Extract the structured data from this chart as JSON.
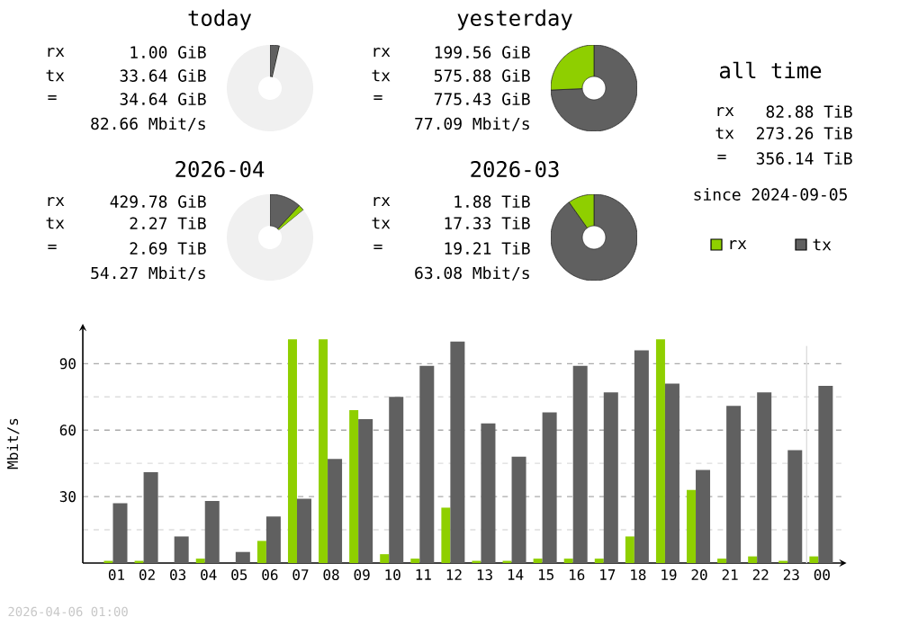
{
  "chart_data": [
    {
      "type": "donut",
      "title": "today",
      "categories": [
        null,
        null,
        null
      ],
      "values": [
        3.5,
        0.1,
        96.4
      ],
      "colors": [
        "#606060",
        "#8fcf00",
        "#f0f0f0"
      ],
      "annotations": [
        "rx",
        "1.00 GiB",
        "tx",
        "33.64 GiB",
        "=",
        "34.64 GiB",
        "82.66 Mbit/s"
      ]
    },
    {
      "type": "donut",
      "title": "yesterday",
      "categories": [
        null,
        null,
        null
      ],
      "values": [
        74.3,
        25.7,
        0
      ],
      "colors": [
        "#606060",
        "#8fcf00",
        "#f0f0f0"
      ],
      "annotations": [
        "rx",
        "199.56 GiB",
        "tx",
        "575.88 GiB",
        "=",
        "775.43 GiB",
        "77.09 Mbit/s"
      ]
    },
    {
      "type": "other",
      "title": "all time",
      "annotations": [
        "rx",
        "82.88 TiB",
        "tx",
        "273.26 TiB",
        "=",
        "356.14 TiB",
        "since 2024-09-05"
      ]
    },
    {
      "type": "donut",
      "title": "2026-04",
      "categories": [
        null,
        null,
        null
      ],
      "values": [
        11.8,
        2.2,
        86
      ],
      "colors": [
        "#606060",
        "#8fcf00",
        "#f0f0f0"
      ],
      "annotations": [
        "rx",
        "429.78 GiB",
        "tx",
        "2.27 TiB",
        "=",
        "2.69 TiB",
        "54.27 Mbit/s"
      ]
    },
    {
      "type": "donut",
      "title": "2026-03",
      "categories": [
        null,
        null,
        null
      ],
      "values": [
        90.2,
        9.8,
        0
      ],
      "colors": [
        "#606060",
        "#8fcf00",
        "#f0f0f0"
      ],
      "annotations": [
        "rx",
        "1.88 TiB",
        "tx",
        "17.33 TiB",
        "=",
        "19.21 TiB",
        "63.08 Mbit/s"
      ]
    },
    {
      "type": "bar",
      "ylabel": "Mbit/s",
      "categories": [
        "01",
        "02",
        "03",
        "04",
        "05",
        "06",
        "07",
        "08",
        "09",
        "10",
        "11",
        "12",
        "13",
        "14",
        "15",
        "16",
        "17",
        "18",
        "19",
        "20",
        "21",
        "22",
        "23",
        "00"
      ],
      "series": [
        {
          "name": "rx",
          "color": "#8fcf00",
          "values": [
            1,
            1,
            0,
            2,
            0,
            10,
            101,
            101,
            69,
            4,
            2,
            25,
            1,
            1,
            2,
            2,
            2,
            12,
            101,
            33,
            2,
            3,
            1,
            3
          ]
        },
        {
          "name": "tx",
          "color": "#606060",
          "values": [
            27,
            41,
            12,
            28,
            5,
            21,
            29,
            47,
            65,
            75,
            89,
            100,
            63,
            48,
            68,
            89,
            77,
            96,
            81,
            42,
            71,
            77,
            51,
            80
          ]
        }
      ],
      "ylim": [
        0,
        108
      ],
      "yticks": [
        {
          "value": 15,
          "label": null
        },
        30,
        {
          "value": 45,
          "label": null
        },
        60,
        {
          "value": 75,
          "label": null
        },
        90
      ],
      "grid": "y",
      "legend": "top right",
      "ref_lines": [
        {
          "axis": "x",
          "value": "00",
          "color": "#dddddd"
        }
      ],
      "annotations": [
        "2026-04-06 01:00"
      ]
    }
  ]
}
